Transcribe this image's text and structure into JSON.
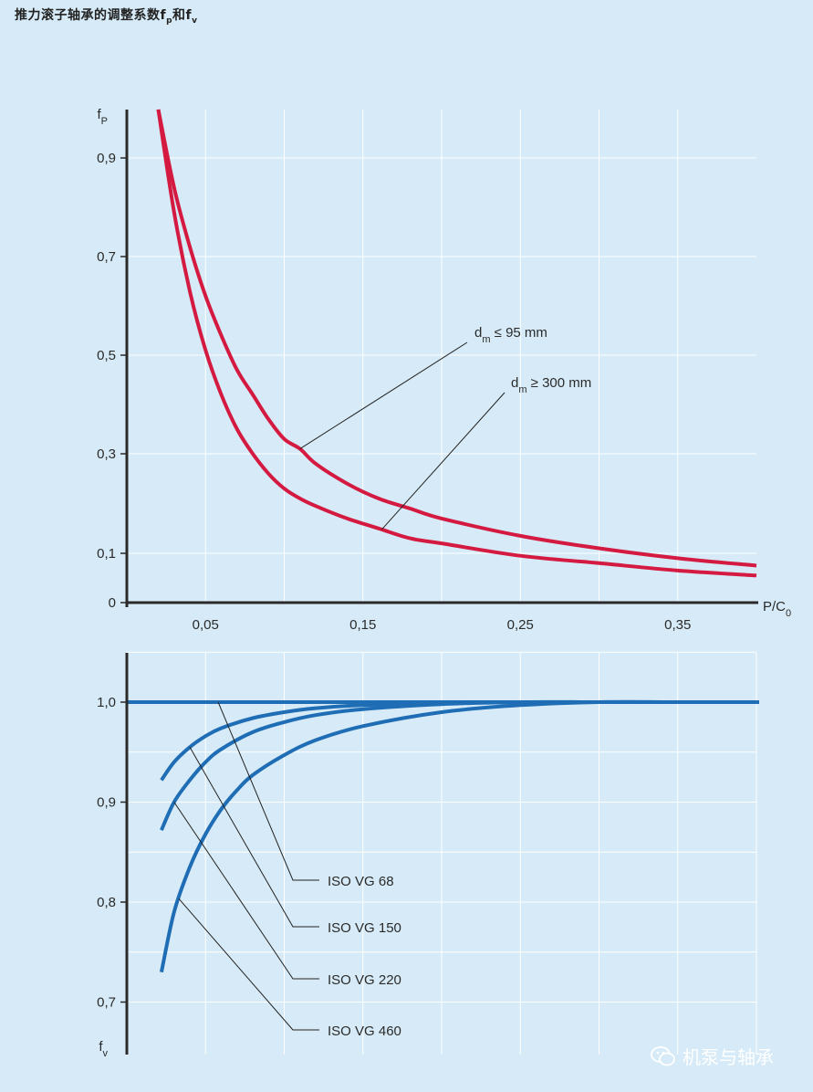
{
  "title": {
    "main": "推力滚子轴承的调整系数f",
    "sub1": "p",
    "mid": "和f",
    "sub2": "v"
  },
  "watermark": "机泵与轴承",
  "colors": {
    "background": "#d6ebf7",
    "fp_curve": "#d41a40",
    "fv_curve": "#1f6db5",
    "axis": "#2a2a2a",
    "grid": "#ffffff"
  },
  "chart_data": [
    {
      "type": "line",
      "ylabel": "f",
      "ylabel_sub": "P",
      "xlabel": "P/C",
      "xlabel_sub": "0",
      "xlim": [
        0,
        0.4
      ],
      "ylim": [
        0,
        1.0
      ],
      "xticks": [
        0.05,
        0.15,
        0.25,
        0.35
      ],
      "xtick_labels": [
        "0,05",
        "0,15",
        "0,25",
        "0,35"
      ],
      "yticks": [
        0,
        0.1,
        0.3,
        0.5,
        0.7,
        0.9
      ],
      "ytick_labels": [
        "0",
        "0,1",
        "0,3",
        "0,5",
        "0,7",
        "0,9"
      ],
      "grid": true,
      "series": [
        {
          "name": "dm ≤ 95 mm",
          "label_main": "d",
          "label_sub": "m",
          "label_rest": " ≤ 95 mm",
          "x": [
            0.02,
            0.03,
            0.04,
            0.05,
            0.06,
            0.07,
            0.08,
            0.09,
            0.1,
            0.11,
            0.12,
            0.14,
            0.16,
            0.18,
            0.2,
            0.25,
            0.3,
            0.35,
            0.4
          ],
          "y": [
            1.0,
            0.84,
            0.72,
            0.62,
            0.54,
            0.47,
            0.42,
            0.37,
            0.33,
            0.31,
            0.28,
            0.24,
            0.21,
            0.19,
            0.17,
            0.135,
            0.11,
            0.09,
            0.075
          ]
        },
        {
          "name": "dm ≥ 300 mm",
          "label_main": "d",
          "label_sub": "m",
          "label_rest": " ≥ 300 mm",
          "x": [
            0.02,
            0.03,
            0.04,
            0.05,
            0.06,
            0.07,
            0.08,
            0.09,
            0.1,
            0.11,
            0.12,
            0.14,
            0.16,
            0.18,
            0.2,
            0.25,
            0.3,
            0.35,
            0.4
          ],
          "y": [
            1.0,
            0.79,
            0.63,
            0.51,
            0.42,
            0.35,
            0.3,
            0.26,
            0.23,
            0.21,
            0.195,
            0.17,
            0.15,
            0.13,
            0.12,
            0.095,
            0.08,
            0.065,
            0.055
          ]
        }
      ]
    },
    {
      "type": "line",
      "ylabel": "f",
      "ylabel_sub": "v",
      "xlim": [
        0,
        0.4
      ],
      "ylim": [
        0.66,
        1.05
      ],
      "yticks": [
        0.7,
        0.8,
        0.9,
        1.0
      ],
      "ytick_labels": [
        "0,7",
        "0,8",
        "0,9",
        "1,0"
      ],
      "grid": true,
      "series": [
        {
          "name": "ISO VG 68",
          "x": [
            0,
            0.4
          ],
          "y": [
            1.0,
            1.0
          ]
        },
        {
          "name": "ISO VG 150",
          "x": [
            0.022,
            0.03,
            0.04,
            0.05,
            0.06,
            0.08,
            0.1,
            0.12,
            0.15,
            0.2,
            0.25,
            0.3,
            0.35,
            0.4
          ],
          "y": [
            0.922,
            0.94,
            0.955,
            0.966,
            0.974,
            0.984,
            0.99,
            0.994,
            0.997,
            0.999,
            1.0,
            1.0,
            1.0,
            1.0
          ]
        },
        {
          "name": "ISO VG 220",
          "x": [
            0.022,
            0.03,
            0.04,
            0.05,
            0.06,
            0.08,
            0.1,
            0.12,
            0.15,
            0.2,
            0.25,
            0.3,
            0.35,
            0.4
          ],
          "y": [
            0.872,
            0.9,
            0.922,
            0.94,
            0.953,
            0.97,
            0.98,
            0.987,
            0.993,
            0.998,
            1.0,
            1.0,
            1.0,
            1.0
          ]
        },
        {
          "name": "ISO VG 460",
          "x": [
            0.022,
            0.03,
            0.04,
            0.05,
            0.06,
            0.07,
            0.08,
            0.1,
            0.12,
            0.15,
            0.2,
            0.25,
            0.3,
            0.35,
            0.4
          ],
          "y": [
            0.73,
            0.79,
            0.835,
            0.868,
            0.893,
            0.912,
            0.927,
            0.947,
            0.962,
            0.976,
            0.99,
            0.997,
            1.0,
            1.0,
            1.0
          ]
        }
      ]
    }
  ]
}
